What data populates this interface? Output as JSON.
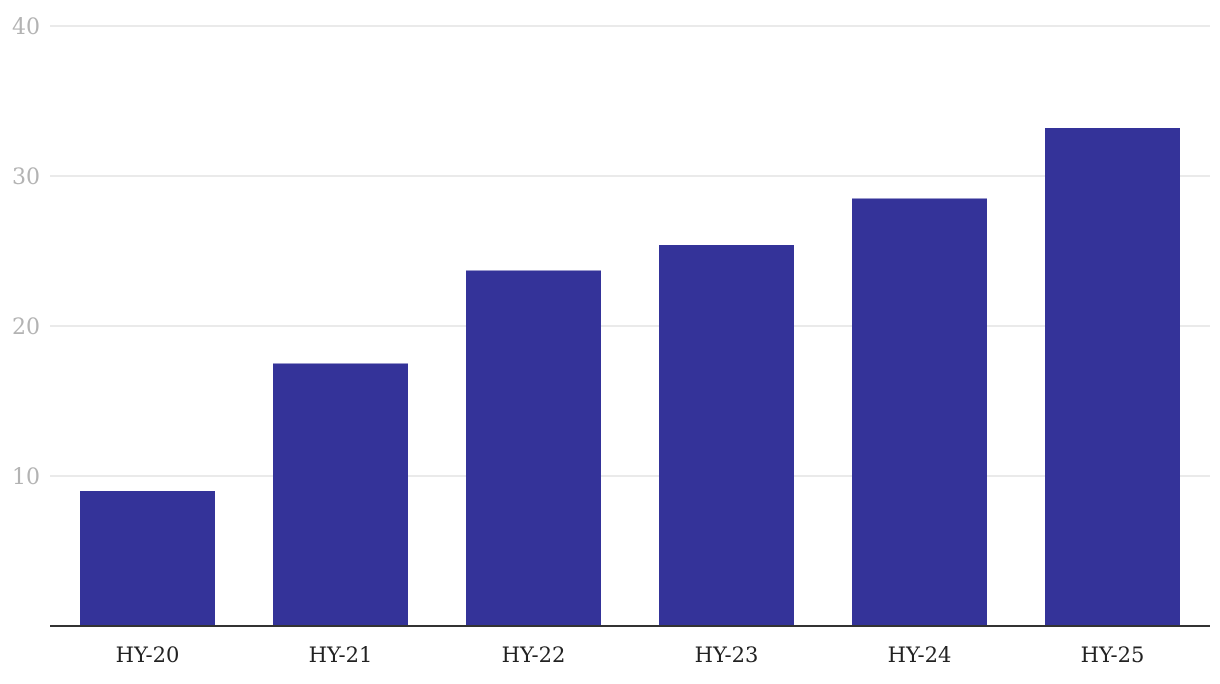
{
  "chart_data": {
    "type": "bar",
    "title": "",
    "xlabel": "",
    "ylabel": "",
    "categories": [
      "HY-20",
      "HY-21",
      "HY-22",
      "HY-23",
      "HY-24",
      "HY-25"
    ],
    "series": [
      {
        "values": [
          9.0,
          17.5,
          23.7,
          25.4,
          28.5,
          33.2
        ]
      }
    ],
    "ylim": [
      0,
      40
    ],
    "yticks": [
      10,
      20,
      30,
      40
    ],
    "grid": true,
    "legend": "none",
    "colors": {
      "bar": "#343399",
      "grid": "#e3e3e3",
      "axis": "#333333"
    }
  }
}
